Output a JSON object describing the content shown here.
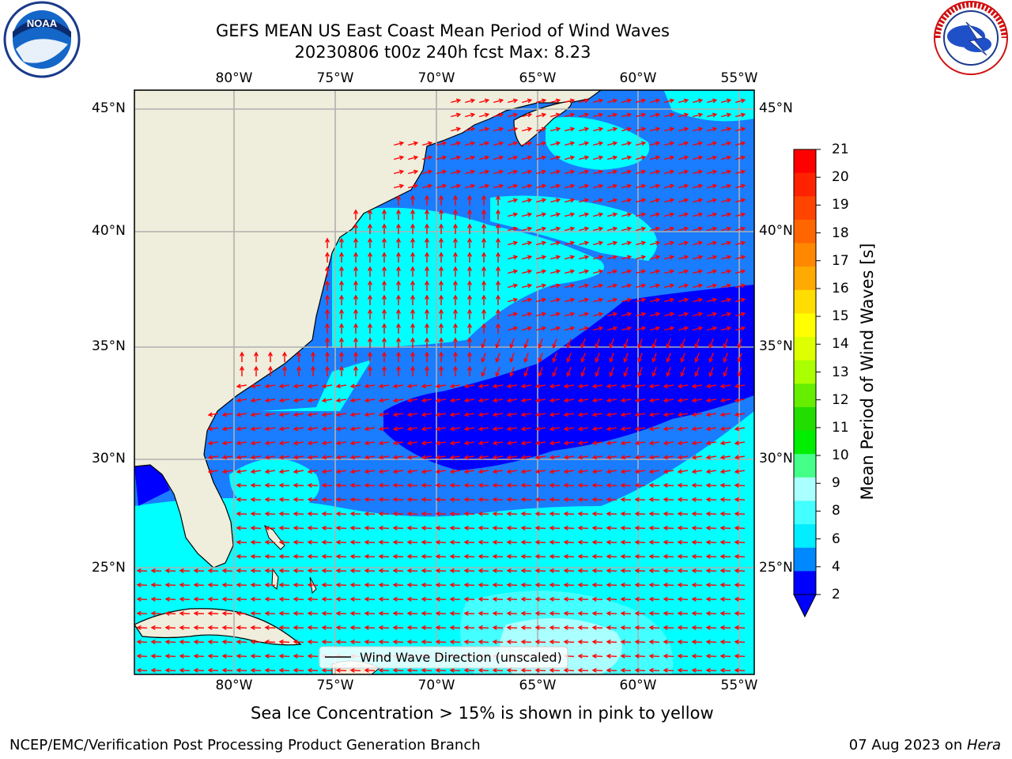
{
  "title_line1": "GEFS MEAN US East Coast Mean Period of Wind Waves",
  "title_line2": "20230806 t00z 240h fcst   Max: 8.23",
  "subtitle": "Sea Ice Concentration > 15% is shown in pink to yellow",
  "footer_left": "NCEP/EMC/Verification Post Processing Product Generation Branch",
  "footer_date": "07 Aug 2023 on ",
  "footer_machine": "Hera",
  "logos": {
    "left": "NOAA",
    "right": "NATIONAL WEATHER SERVICE"
  },
  "map": {
    "lon_labels_top": [
      "80°W",
      "75°W",
      "70°W",
      "65°W",
      "60°W",
      "55°W"
    ],
    "lon_labels_bottom": [
      "80°W",
      "75°W",
      "70°W",
      "65°W",
      "60°W",
      "55°W"
    ],
    "lat_labels_left": [
      "45°N",
      "40°N",
      "35°N",
      "30°N",
      "25°N"
    ],
    "lat_labels_right": [
      "45°N",
      "40°N",
      "35°N",
      "30°N",
      "25°N"
    ],
    "legend_label": "Wind Wave Direction (unscaled)",
    "colors": {
      "land": "#efeddb",
      "grid": "#b0b0b0",
      "arrow": "#ff0000"
    }
  },
  "colorbar": {
    "label": "Mean Period of Wind Waves [s]",
    "ticks": [
      "21",
      "20",
      "19",
      "18",
      "17",
      "16",
      "15",
      "14",
      "13",
      "12",
      "11",
      "10",
      "9",
      "8",
      "6",
      "4",
      "2"
    ],
    "colors": [
      "#ff0000",
      "#ff2200",
      "#ff4400",
      "#ff6600",
      "#ff8800",
      "#ffaa00",
      "#ffdd00",
      "#ffff00",
      "#ddff00",
      "#aaff00",
      "#66ee00",
      "#22dd00",
      "#00ee00",
      "#44ff88",
      "#aaffff",
      "#44ffff",
      "#00eeff",
      "#0088ff",
      "#0000ff"
    ],
    "extend_color": "#0000ff"
  }
}
